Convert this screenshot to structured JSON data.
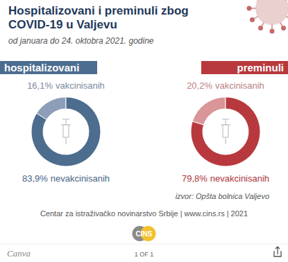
{
  "title": "Hospitalizovani i preminuli zbog COVID-19 u Valjevu",
  "subtitle": "od januara do 24. oktobra 2021. godine",
  "chart_data": [
    {
      "type": "donut",
      "title": "hospitalizovani",
      "categories": [
        "vakcinisanih",
        "nevakcinisanih"
      ],
      "values": [
        16.1,
        83.9
      ],
      "value_labels": [
        "16,1%",
        "83,9%"
      ],
      "colors": [
        "#8d9fb8",
        "#4d6d8f"
      ],
      "data_labels": true
    },
    {
      "type": "donut",
      "title": "preminuli",
      "categories": [
        "vakcinisanih",
        "nevakcinisanih"
      ],
      "values": [
        20.2,
        79.8
      ],
      "value_labels": [
        "20,2%",
        "79,8%"
      ],
      "colors": [
        "#d99597",
        "#b8393d"
      ],
      "data_labels": true
    }
  ],
  "source": "izvor: Opšta bolnica Valjevo",
  "footer": "Centar za istraživačko novinarstvo Srbije | www.cins.rs | 2021",
  "logo": "CINS",
  "brand": "Canva",
  "pages": "1 OF 1"
}
